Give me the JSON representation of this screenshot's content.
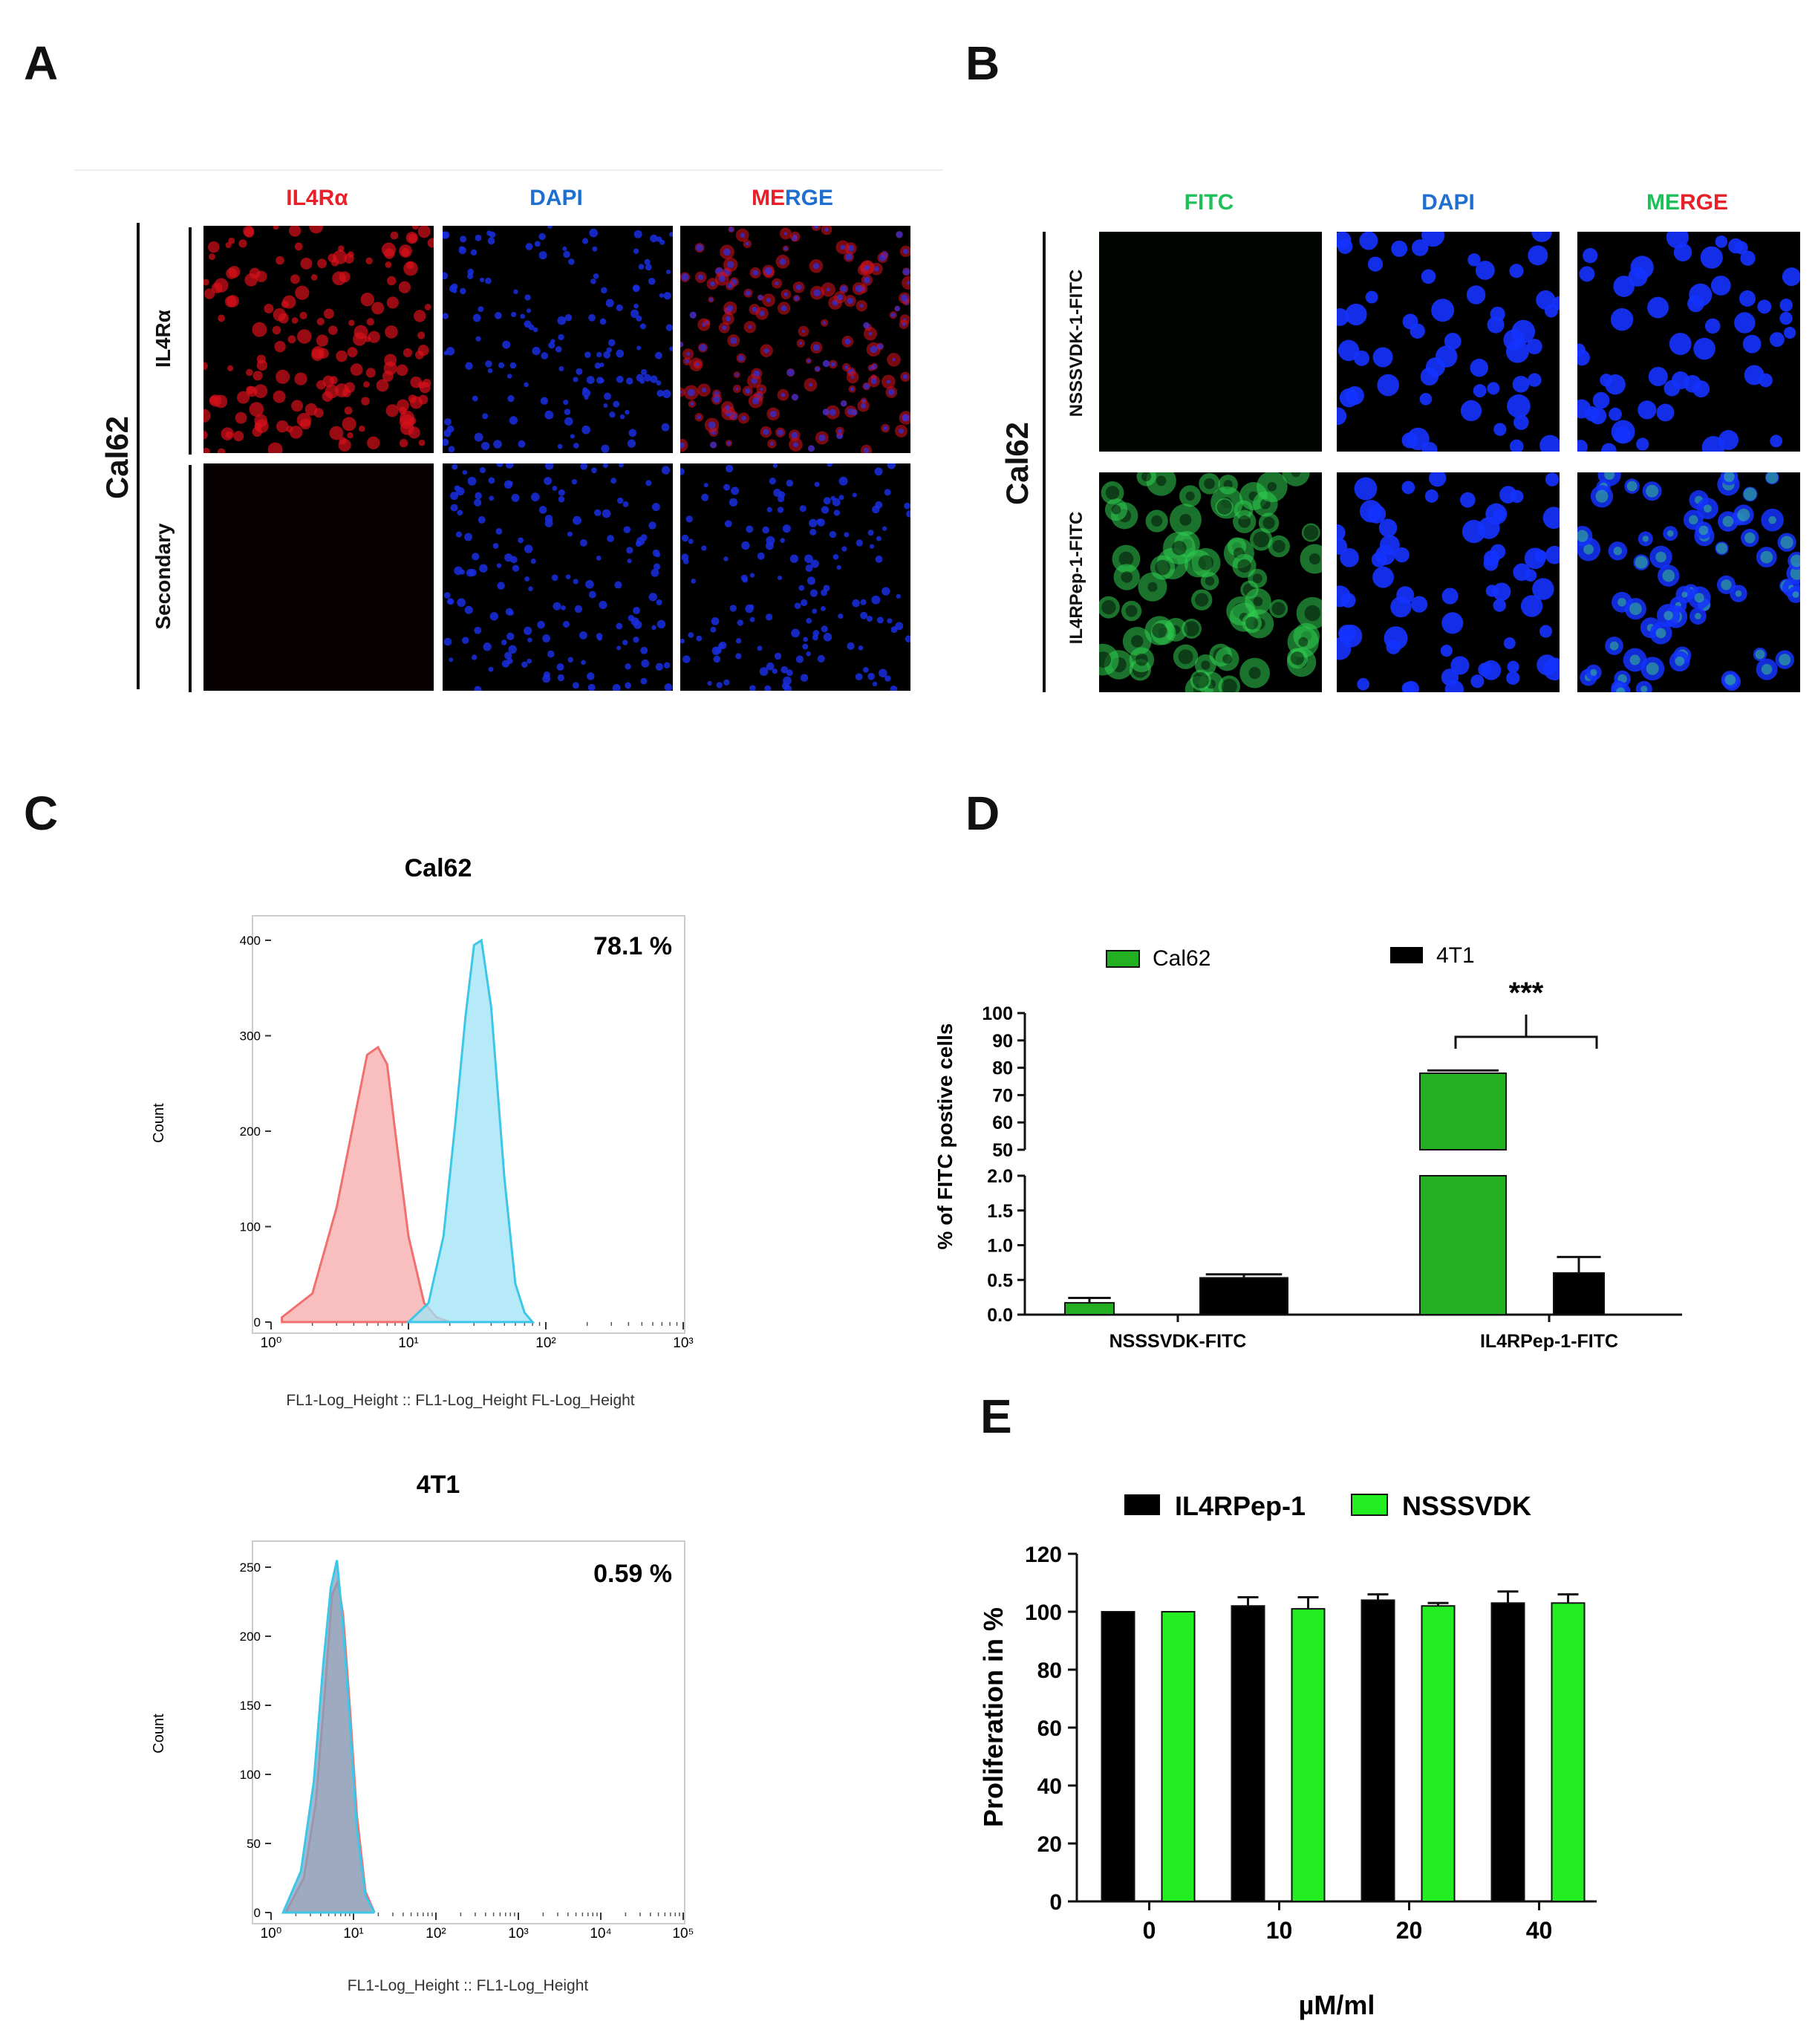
{
  "panels": {
    "A": {
      "letter": "A",
      "cell_line": "Cal62",
      "columns": [
        "IL4Rα",
        "DAPI",
        "MERGE"
      ],
      "merge_parts": [
        "ME",
        "RGE"
      ],
      "rows": [
        "IL4Rα",
        "Secondary"
      ],
      "colors": {
        "il4": "#e8202a",
        "dapi": "#1f6fd1"
      }
    },
    "B": {
      "letter": "B",
      "cell_line": "Cal62",
      "columns": [
        "FITC",
        "DAPI",
        "MERGE"
      ],
      "merge_parts": [
        "ME",
        "RGE"
      ],
      "rows": [
        "NSSSVDK-1-FITC",
        "IL4RPep-1-FITC"
      ],
      "colors": {
        "fitc": "#1fbf5a",
        "dapi": "#1f6fd1",
        "red": "#e8202a"
      }
    },
    "C": {
      "letter": "C"
    },
    "D": {
      "letter": "D"
    },
    "E": {
      "letter": "E"
    }
  },
  "chart_data": [
    {
      "id": "C-top",
      "type": "area",
      "title": "Cal62",
      "annotation": "78.1 %",
      "ylabel": "Count",
      "xlabel": "FL1-Log_Height :: FL1-Log_Height FL-Log_Height",
      "x_scale": "log",
      "xlim": [
        1,
        1000
      ],
      "ylim": [
        0,
        400
      ],
      "y_ticks": [
        0,
        100,
        200,
        300,
        400
      ],
      "x_ticks": [
        "10⁰",
        "10¹",
        "10²",
        "10³"
      ],
      "series": [
        {
          "color": "#f07070",
          "fill": "#f7a9a9",
          "x": [
            1.2,
            2,
            3,
            4,
            5,
            6,
            7,
            8,
            10,
            13,
            16,
            20
          ],
          "y": [
            5,
            30,
            120,
            210,
            280,
            288,
            270,
            200,
            90,
            20,
            5,
            0
          ]
        },
        {
          "color": "#3cc6e8",
          "fill": "#9ee3f5",
          "x": [
            10,
            14,
            18,
            22,
            26,
            30,
            34,
            40,
            50,
            60,
            70,
            80
          ],
          "y": [
            0,
            20,
            90,
            210,
            320,
            395,
            400,
            330,
            150,
            40,
            10,
            0
          ]
        }
      ]
    },
    {
      "id": "C-bottom",
      "type": "area",
      "title": "4T1",
      "annotation": "0.59 %",
      "ylabel": "Count",
      "xlabel": "FL1-Log_Height :: FL1-Log_Height",
      "x_scale": "log",
      "xlim": [
        1,
        100000
      ],
      "ylim": [
        0,
        250
      ],
      "y_ticks": [
        0,
        50,
        100,
        150,
        200,
        250
      ],
      "x_ticks": [
        "10⁰",
        "10¹",
        "10²",
        "10³",
        "10⁴",
        "10⁵"
      ],
      "series": [
        {
          "color": "#f07070",
          "fill": "#f7a9a9",
          "x": [
            1.5,
            2.5,
            3.5,
            4.5,
            5.5,
            6.5,
            7.5,
            9,
            11,
            14,
            18
          ],
          "y": [
            0,
            25,
            80,
            160,
            230,
            240,
            215,
            150,
            70,
            15,
            0
          ]
        },
        {
          "color": "#3cc6e8",
          "fill": "#7fa3c0",
          "x": [
            1.4,
            2.3,
            3.3,
            4.3,
            5.3,
            6.3,
            7.3,
            9,
            11,
            14,
            18
          ],
          "y": [
            0,
            30,
            95,
            180,
            235,
            255,
            215,
            140,
            60,
            12,
            0
          ]
        }
      ]
    },
    {
      "id": "D",
      "type": "bar",
      "ylabel": "% of FITC postive cells",
      "categories": [
        "NSSSVDK-FITC",
        "IL4RPep-1-FITC"
      ],
      "series": [
        {
          "name": "Cal62",
          "color": "#22b022",
          "values": [
            0.17,
            78
          ],
          "errors": [
            0.07,
            1
          ]
        },
        {
          "name": "4T1",
          "color": "#000000",
          "values": [
            0.53,
            0.6
          ],
          "errors": [
            0.05,
            0.23
          ]
        }
      ],
      "axis_break": {
        "lower": [
          0.0,
          2.0
        ],
        "upper": [
          50,
          100
        ]
      },
      "y_ticks_lower": [
        "0.0",
        "0.5",
        "1.0",
        "1.5",
        "2.0"
      ],
      "y_ticks_upper": [
        "50",
        "60",
        "70",
        "80",
        "90",
        "100"
      ],
      "significance": "***"
    },
    {
      "id": "E",
      "type": "bar",
      "ylabel": "Proliferation in %",
      "xlabel": "µM/ml",
      "categories": [
        "0",
        "10",
        "20",
        "40"
      ],
      "ylim": [
        0,
        120
      ],
      "y_ticks": [
        0,
        20,
        40,
        60,
        80,
        100,
        120
      ],
      "series": [
        {
          "name": "IL4RPep-1",
          "color": "#000000",
          "values": [
            100,
            102,
            104,
            103
          ],
          "errors": [
            0,
            3,
            2,
            4
          ]
        },
        {
          "name": "NSSSVDK",
          "color": "#22ee22",
          "values": [
            100,
            101,
            102,
            103
          ],
          "errors": [
            0,
            4,
            1,
            3
          ]
        }
      ]
    }
  ]
}
